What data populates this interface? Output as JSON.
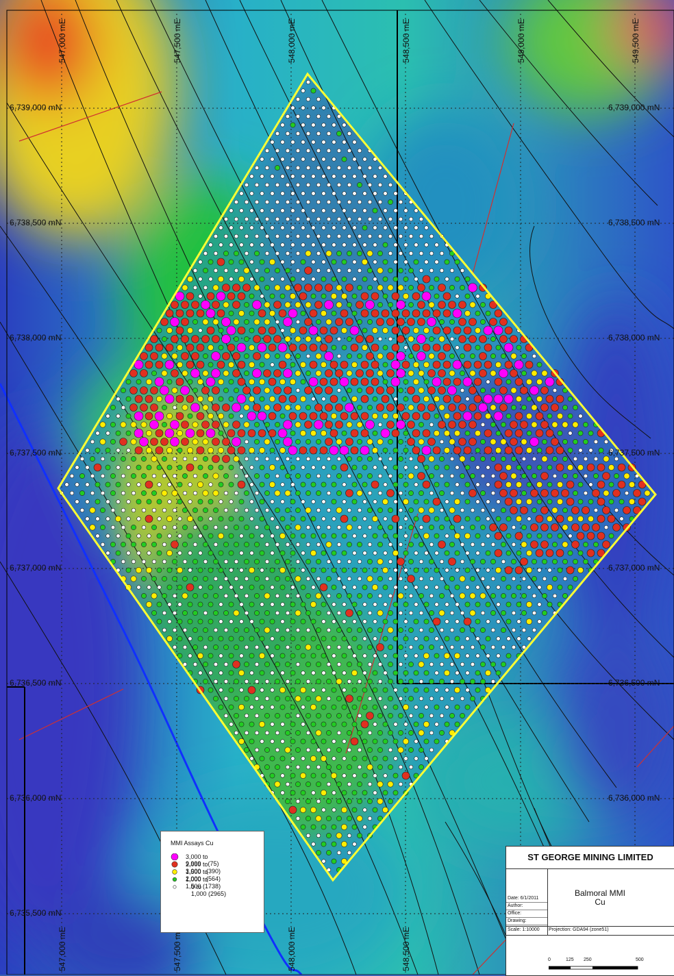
{
  "grid": {
    "northing_labels": [
      "6,739,000 mN",
      "6,738,500 mN",
      "6,738,000 mN",
      "6,737,500 mN",
      "6,737,000 mN",
      "6,736,500 mN",
      "6,736,000 mN",
      "6,735,500 mN"
    ],
    "easting_labels": [
      "547,000 mE",
      "547,500 mE",
      "548,000 mE",
      "548,500 mE",
      "549,000 mE",
      "549,500 mE"
    ]
  },
  "legend": {
    "title": "MMI Assays Cu",
    "items": [
      {
        "range": "3,000 to 9,999",
        "count": "(75)",
        "color": "#ff00ff"
      },
      {
        "range": "2,000 to 3,000",
        "count": "(390)",
        "color": "#e03020"
      },
      {
        "range": "1,500 to 2,000",
        "count": "(564)",
        "color": "#ffee00"
      },
      {
        "range": "1,000 to 1,500",
        "count": "(1738)",
        "color": "#22cc22"
      },
      {
        "range": "0 to 1,000",
        "count": "(2965)",
        "color": "#ffffff"
      }
    ]
  },
  "title_block": {
    "company": "ST GEORGE MINING LIMITED",
    "map_title": "Balmoral MMI",
    "map_subtitle": "Cu",
    "date": "Date: 6/1/2011",
    "author": "Author:",
    "office": "Office:",
    "drawing": "Drawing:",
    "scale": "Scale: 1:10000",
    "projection": "Projection: GDA94 (zone51)",
    "scalebar_labels": [
      "0",
      "125",
      "250",
      "500"
    ]
  },
  "colors": {
    "survey_boundary": "#ffff33",
    "contour": "#111111",
    "fault": "#d03030",
    "channel": "#1030ff"
  }
}
